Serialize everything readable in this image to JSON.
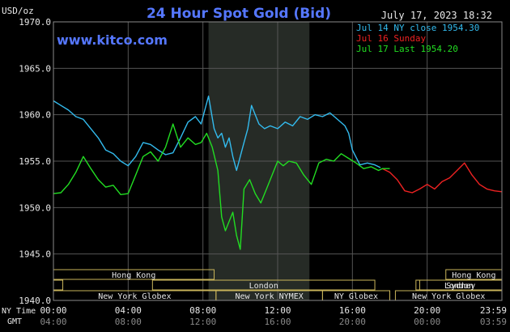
{
  "header": {
    "title": "24 Hour Spot Gold (Bid)",
    "units": "USD/oz",
    "timestamp": "July 17, 2023 18:32",
    "website": "www.kitco.com"
  },
  "legend": {
    "items": [
      {
        "label": "Jul 14 NY close 1954.30",
        "color": "#33bbee"
      },
      {
        "label": "Jul 16 Sunday",
        "color": "#ee2222"
      },
      {
        "label": "Jul 17 Last 1954.20",
        "color": "#22dd22"
      }
    ]
  },
  "axes": {
    "row1_label": "NY Time",
    "row2_label": "GMT",
    "ny_ticks": [
      "00:00",
      "04:00",
      "08:00",
      "12:00",
      "16:00",
      "20:00",
      "23:59"
    ],
    "gmt_ticks": [
      "04:00",
      "08:00",
      "12:00",
      "16:00",
      "20:00",
      "00:00",
      "03:59"
    ],
    "y_ticks": [
      "1970.0",
      "1965.0",
      "1960.0",
      "1955.0",
      "1950.0",
      "1945.0",
      "1940.0"
    ]
  },
  "sessions": [
    {
      "label": "Hong Kong",
      "row": 0,
      "start_h": 0.0,
      "end_h": 8.6
    },
    {
      "label": "Hong Kong",
      "row": 0,
      "start_h": 21.0,
      "end_h": 24.0
    },
    {
      "label": "London",
      "row": 1,
      "start_h": 0.0,
      "end_h": 0.5
    },
    {
      "label": "London",
      "row": 1,
      "start_h": 5.3,
      "end_h": 17.2
    },
    {
      "label": "London",
      "row": 1,
      "start_h": 19.4,
      "end_h": 24.0
    },
    {
      "label": "New York Globex",
      "row": 2,
      "start_h": 0.0,
      "end_h": 8.7
    },
    {
      "label": "New York NYMEX",
      "row": 2,
      "start_h": 8.7,
      "end_h": 14.4
    },
    {
      "label": "NY Globex",
      "row": 2,
      "start_h": 14.4,
      "end_h": 18.0
    },
    {
      "label": "New York Globex",
      "row": 2,
      "start_h": 18.3,
      "end_h": 24.0
    }
  ],
  "sunday_label": "Sydney",
  "chart_data": {
    "type": "line",
    "title": "24 Hour Spot Gold (Bid)",
    "ylabel": "USD/oz",
    "xlabel": "NY Time",
    "xlim": [
      0,
      24
    ],
    "ylim": [
      1940,
      1970
    ],
    "grid": true,
    "highlight_x_range": [
      8.3,
      13.7
    ],
    "series": [
      {
        "name": "Jul 14 NY close 1954.30",
        "color": "#33bbee",
        "x": [
          0.0,
          0.4,
          0.8,
          1.2,
          1.6,
          2.0,
          2.4,
          2.8,
          3.2,
          3.6,
          4.0,
          4.4,
          4.8,
          5.2,
          5.6,
          6.0,
          6.4,
          6.8,
          7.2,
          7.6,
          7.9,
          8.1,
          8.3,
          8.6,
          8.8,
          9.0,
          9.2,
          9.4,
          9.6,
          9.8,
          10.0,
          10.2,
          10.4,
          10.6,
          10.8,
          11.0,
          11.3,
          11.6,
          12.0,
          12.4,
          12.8,
          13.2,
          13.6,
          14.0,
          14.4,
          14.8,
          15.2,
          15.6,
          15.8,
          16.0,
          16.4,
          16.8,
          17.2,
          17.5
        ],
        "y": [
          1961.5,
          1961.0,
          1960.5,
          1959.8,
          1959.5,
          1958.5,
          1957.5,
          1956.2,
          1955.8,
          1955.0,
          1954.5,
          1955.5,
          1957.0,
          1956.8,
          1956.2,
          1955.7,
          1955.9,
          1957.5,
          1959.2,
          1959.8,
          1959.0,
          1960.5,
          1962.0,
          1958.5,
          1957.5,
          1958.0,
          1956.5,
          1957.5,
          1955.5,
          1954.0,
          1955.5,
          1957.0,
          1958.5,
          1961.0,
          1960.0,
          1959.0,
          1958.5,
          1958.8,
          1958.5,
          1959.2,
          1958.8,
          1959.8,
          1959.5,
          1960.0,
          1959.8,
          1960.2,
          1959.5,
          1958.8,
          1958.0,
          1956.2,
          1954.6,
          1954.8,
          1954.6,
          1954.3
        ]
      },
      {
        "name": "Jul 16 Sunday",
        "color": "#ee2222",
        "x": [
          17.6,
          18.0,
          18.4,
          18.8,
          19.2,
          19.6,
          20.0,
          20.4,
          20.8,
          21.2,
          21.6,
          22.0,
          22.4,
          22.8,
          23.2,
          23.6,
          24.0
        ],
        "y": [
          1954.2,
          1953.8,
          1953.0,
          1951.8,
          1951.6,
          1952.0,
          1952.5,
          1952.0,
          1952.8,
          1953.2,
          1954.0,
          1954.8,
          1953.5,
          1952.5,
          1952.0,
          1951.8,
          1951.7
        ]
      },
      {
        "name": "Jul 17 Last 1954.20",
        "color": "#22dd22",
        "x": [
          0.0,
          0.4,
          0.8,
          1.2,
          1.6,
          2.0,
          2.4,
          2.8,
          3.2,
          3.6,
          4.0,
          4.4,
          4.8,
          5.2,
          5.6,
          6.0,
          6.4,
          6.8,
          7.2,
          7.6,
          7.9,
          8.2,
          8.5,
          8.8,
          9.0,
          9.2,
          9.4,
          9.6,
          9.8,
          10.0,
          10.2,
          10.5,
          10.8,
          11.1,
          11.4,
          11.7,
          12.0,
          12.3,
          12.6,
          13.0,
          13.4,
          13.8,
          14.2,
          14.6,
          15.0,
          15.4,
          15.8,
          16.2,
          16.6,
          17.0,
          17.4,
          17.6,
          18.0
        ],
        "y": [
          1951.5,
          1951.6,
          1952.5,
          1953.8,
          1955.5,
          1954.2,
          1953.0,
          1952.2,
          1952.4,
          1951.4,
          1951.5,
          1953.5,
          1955.5,
          1956.0,
          1955.0,
          1956.5,
          1959.0,
          1956.5,
          1957.5,
          1956.8,
          1957.0,
          1958.0,
          1956.5,
          1954.0,
          1949.0,
          1947.5,
          1948.5,
          1949.5,
          1947.0,
          1945.5,
          1952.0,
          1953.0,
          1951.5,
          1950.5,
          1952.0,
          1953.5,
          1955.0,
          1954.5,
          1955.0,
          1954.8,
          1953.5,
          1952.5,
          1954.8,
          1955.2,
          1955.0,
          1955.8,
          1955.3,
          1954.8,
          1954.2,
          1954.4,
          1954.0,
          1954.2,
          1954.2
        ]
      }
    ]
  }
}
